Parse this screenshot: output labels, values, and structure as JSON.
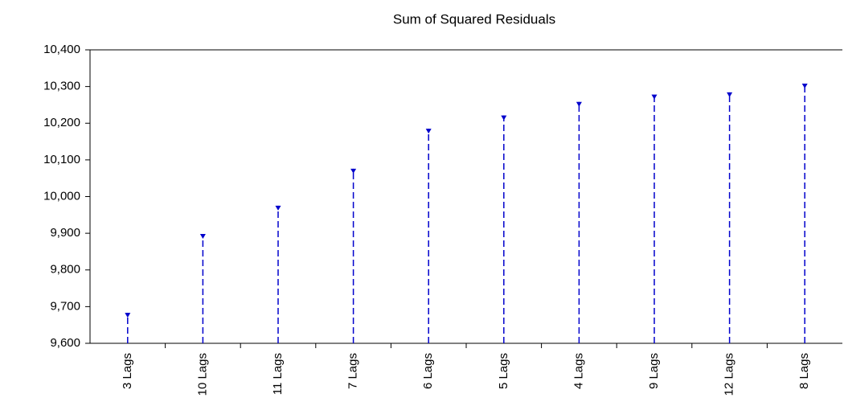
{
  "chart_data": {
    "type": "stem",
    "title": "Sum of Squared Residuals",
    "categories": [
      "3 Lags",
      "10 Lags",
      "11 Lags",
      "7 Lags",
      "6 Lags",
      "5 Lags",
      "4 Lags",
      "9 Lags",
      "12 Lags",
      "8 Lags"
    ],
    "values": [
      9683,
      9898,
      9975,
      10076,
      10185,
      10221,
      10258,
      10278,
      10284,
      10308
    ],
    "color": "#0000cc",
    "ylim": [
      9600,
      10400
    ],
    "yticks": [
      {
        "value": 9600,
        "label": "9,600"
      },
      {
        "value": 9700,
        "label": "9,700"
      },
      {
        "value": 9800,
        "label": "9,800"
      },
      {
        "value": 9900,
        "label": "9,900"
      },
      {
        "value": 10000,
        "label": "10,000"
      },
      {
        "value": 10100,
        "label": "10,100"
      },
      {
        "value": 10200,
        "label": "10,200"
      },
      {
        "value": 10300,
        "label": "10,300"
      },
      {
        "value": 10400,
        "label": "10,400"
      }
    ],
    "grid": false
  }
}
